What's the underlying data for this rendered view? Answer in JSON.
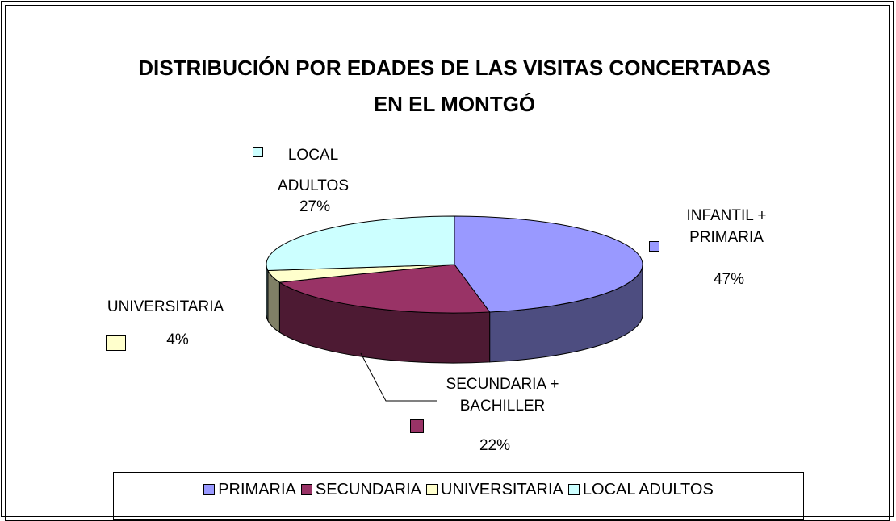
{
  "chart_data": {
    "type": "pie",
    "title": "DISTRIBUCIÓN POR EDADES DE LAS VISITAS CONCERTADAS EN EL MONTGÓ",
    "categories": [
      "PRIMARIA",
      "SECUNDARIA",
      "UNIVERSITARIA",
      "LOCAL ADULTOS"
    ],
    "labels": [
      "INFANTIL + PRIMARIA",
      "SECUNDARIA + BACHILLER",
      "UNIVERSITARIA",
      "LOCAL ADULTOS"
    ],
    "values": [
      47,
      22,
      4,
      27
    ],
    "value_labels": [
      "47%",
      "22%",
      "4%",
      "27%"
    ],
    "colors": [
      "#9999ff",
      "#993366",
      "#ffffcc",
      "#ccffff"
    ],
    "legend": "bottom"
  }
}
